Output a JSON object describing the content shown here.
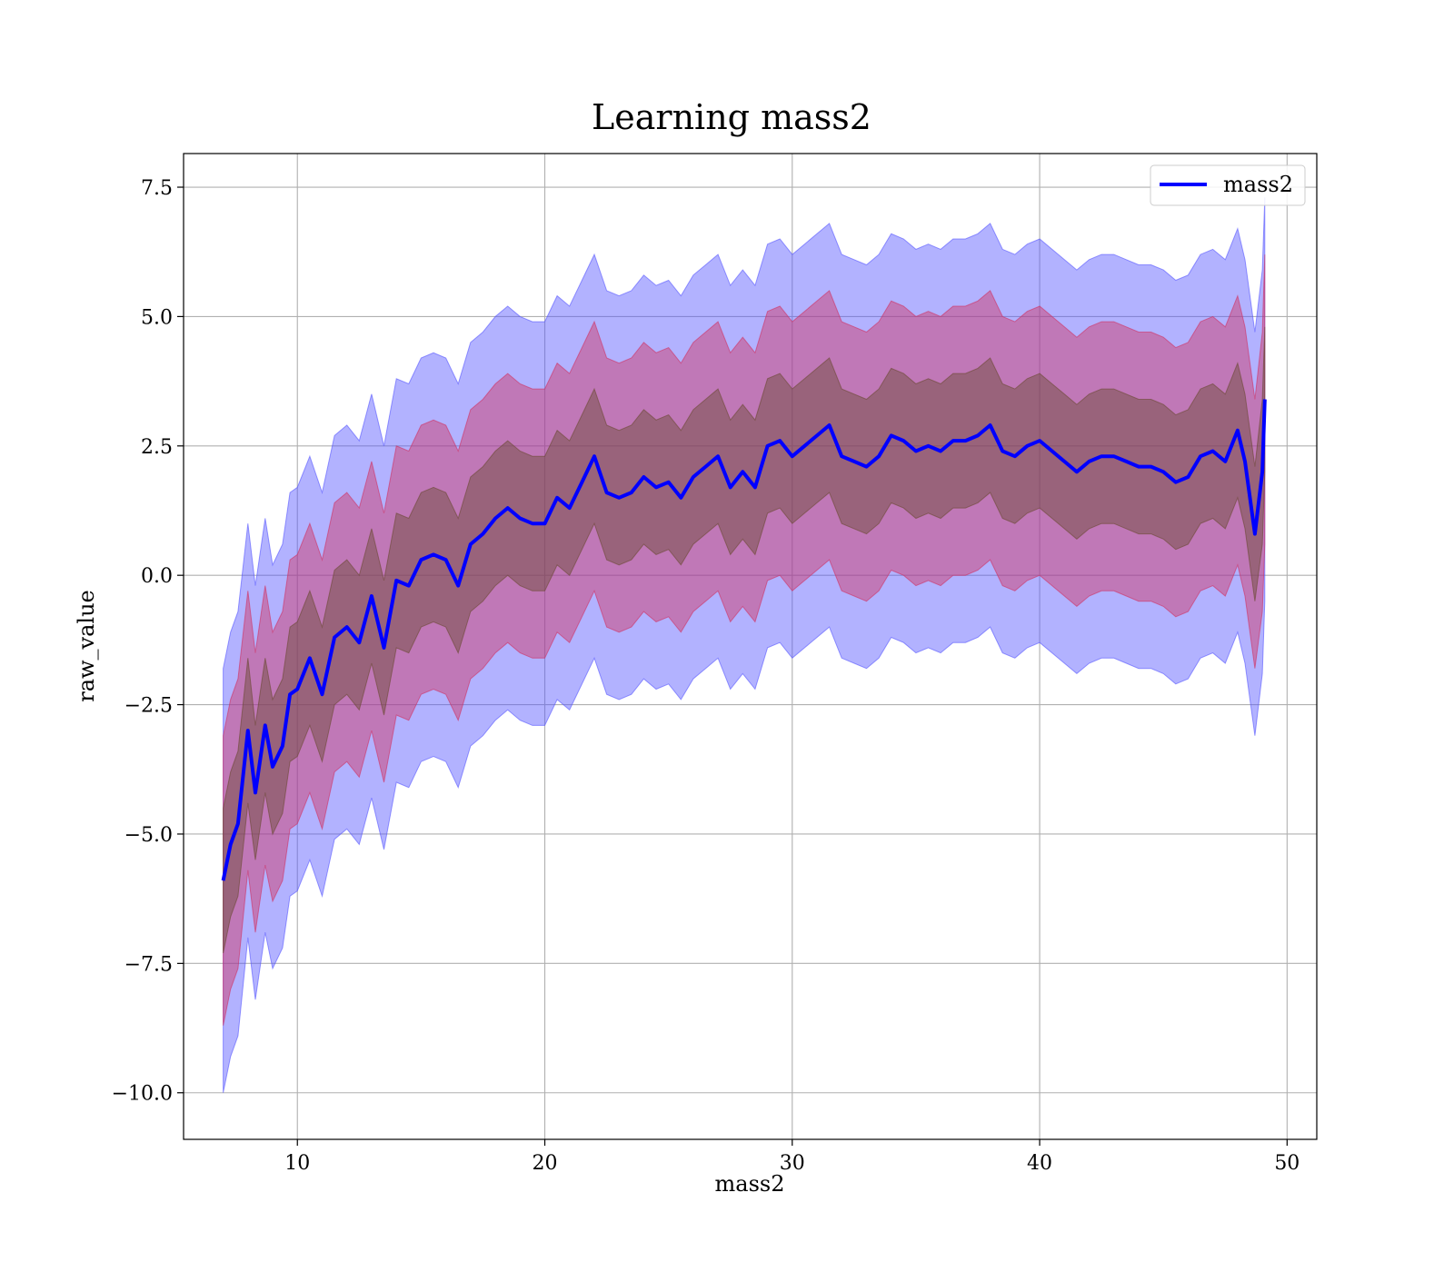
{
  "chart_data": {
    "type": "line",
    "title": "Learning mass2",
    "xlabel": "mass2",
    "ylabel": "raw_value",
    "xlim": [
      5.4,
      51.2
    ],
    "ylim": [
      -10.9,
      8.15
    ],
    "xticks": [
      10,
      20,
      30,
      40,
      50
    ],
    "yticks": [
      7.5,
      5.0,
      2.5,
      0.0,
      -2.5,
      -5.0,
      -7.5,
      -10.0
    ],
    "ytick_labels": [
      "7.5",
      "5.0",
      "2.5",
      "0.0",
      "−2.5",
      "−5.0",
      "−7.5",
      "−10.0"
    ],
    "grid": true,
    "legend": {
      "placement": "top-right",
      "entries": [
        "mass2"
      ]
    },
    "colors": {
      "line": "#0000ff",
      "band_outer": "#5555ff",
      "band_middle": "#d03060",
      "band_inner": "#6b4a33"
    },
    "band_alpha": 0.45,
    "series": [
      {
        "name": "mass2",
        "x": [
          7.0,
          7.3,
          7.6,
          8.0,
          8.3,
          8.7,
          9.0,
          9.4,
          9.7,
          10.0,
          10.5,
          11.0,
          11.5,
          12.0,
          12.5,
          13.0,
          13.5,
          14.0,
          14.5,
          15.0,
          15.5,
          16.0,
          16.5,
          17.0,
          17.5,
          18.0,
          18.5,
          19.0,
          19.5,
          20.0,
          20.5,
          21.0,
          21.5,
          22.0,
          22.5,
          23.0,
          23.5,
          24.0,
          24.5,
          25.0,
          25.5,
          26.0,
          26.5,
          27.0,
          27.5,
          28.0,
          28.5,
          29.0,
          29.5,
          30.0,
          30.5,
          31.0,
          31.5,
          32.0,
          32.5,
          33.0,
          33.5,
          34.0,
          34.5,
          35.0,
          35.5,
          36.0,
          36.5,
          37.0,
          37.5,
          38.0,
          38.5,
          39.0,
          39.5,
          40.0,
          40.5,
          41.0,
          41.5,
          42.0,
          42.5,
          43.0,
          43.5,
          44.0,
          44.5,
          45.0,
          45.5,
          46.0,
          46.5,
          47.0,
          47.5,
          48.0,
          48.3,
          48.7,
          49.0,
          49.1
        ],
        "mean": [
          -5.9,
          -5.2,
          -4.8,
          -3.0,
          -4.2,
          -2.9,
          -3.7,
          -3.3,
          -2.3,
          -2.2,
          -1.6,
          -2.3,
          -1.2,
          -1.0,
          -1.3,
          -0.4,
          -1.4,
          -0.1,
          -0.2,
          0.3,
          0.4,
          0.3,
          -0.2,
          0.6,
          0.8,
          1.1,
          1.3,
          1.1,
          1.0,
          1.0,
          1.5,
          1.3,
          1.8,
          2.3,
          1.6,
          1.5,
          1.6,
          1.9,
          1.7,
          1.8,
          1.5,
          1.9,
          2.1,
          2.3,
          1.7,
          2.0,
          1.7,
          2.5,
          2.6,
          2.3,
          2.5,
          2.7,
          2.9,
          2.3,
          2.2,
          2.1,
          2.3,
          2.7,
          2.6,
          2.4,
          2.5,
          2.4,
          2.6,
          2.6,
          2.7,
          2.9,
          2.4,
          2.3,
          2.5,
          2.6,
          2.4,
          2.2,
          2.0,
          2.2,
          2.3,
          2.3,
          2.2,
          2.1,
          2.1,
          2.0,
          1.8,
          1.9,
          2.3,
          2.4,
          2.2,
          2.8,
          2.2,
          0.8,
          2.0,
          3.4
        ],
        "band_inner": [
          1.4,
          1.4,
          1.4,
          1.4,
          1.3,
          1.3,
          1.3,
          1.3,
          1.3,
          1.3,
          1.3,
          1.3,
          1.3,
          1.3,
          1.3,
          1.3,
          1.3,
          1.3,
          1.3,
          1.3,
          1.3,
          1.3,
          1.3,
          1.3,
          1.3,
          1.3,
          1.3,
          1.3,
          1.3,
          1.3,
          1.3,
          1.3,
          1.3,
          1.3,
          1.3,
          1.3,
          1.3,
          1.3,
          1.3,
          1.3,
          1.3,
          1.3,
          1.3,
          1.3,
          1.3,
          1.3,
          1.3,
          1.3,
          1.3,
          1.3,
          1.3,
          1.3,
          1.3,
          1.3,
          1.3,
          1.3,
          1.3,
          1.3,
          1.3,
          1.3,
          1.3,
          1.3,
          1.3,
          1.3,
          1.3,
          1.3,
          1.3,
          1.3,
          1.3,
          1.3,
          1.3,
          1.3,
          1.3,
          1.3,
          1.3,
          1.3,
          1.3,
          1.3,
          1.3,
          1.3,
          1.3,
          1.3,
          1.3,
          1.3,
          1.3,
          1.3,
          1.3,
          1.3,
          1.4,
          1.4
        ],
        "band_middle": [
          2.8,
          2.8,
          2.8,
          2.7,
          2.7,
          2.7,
          2.6,
          2.6,
          2.6,
          2.6,
          2.6,
          2.6,
          2.6,
          2.6,
          2.6,
          2.6,
          2.6,
          2.6,
          2.6,
          2.6,
          2.6,
          2.6,
          2.6,
          2.6,
          2.6,
          2.6,
          2.6,
          2.6,
          2.6,
          2.6,
          2.6,
          2.6,
          2.6,
          2.6,
          2.6,
          2.6,
          2.6,
          2.6,
          2.6,
          2.6,
          2.6,
          2.6,
          2.6,
          2.6,
          2.6,
          2.6,
          2.6,
          2.6,
          2.6,
          2.6,
          2.6,
          2.6,
          2.6,
          2.6,
          2.6,
          2.6,
          2.6,
          2.6,
          2.6,
          2.6,
          2.6,
          2.6,
          2.6,
          2.6,
          2.6,
          2.6,
          2.6,
          2.6,
          2.6,
          2.6,
          2.6,
          2.6,
          2.6,
          2.6,
          2.6,
          2.6,
          2.6,
          2.6,
          2.6,
          2.6,
          2.6,
          2.6,
          2.6,
          2.6,
          2.6,
          2.6,
          2.6,
          2.6,
          2.7,
          2.8
        ],
        "band_outer": [
          4.1,
          4.1,
          4.1,
          4.0,
          4.0,
          4.0,
          3.9,
          3.9,
          3.9,
          3.9,
          3.9,
          3.9,
          3.9,
          3.9,
          3.9,
          3.9,
          3.9,
          3.9,
          3.9,
          3.9,
          3.9,
          3.9,
          3.9,
          3.9,
          3.9,
          3.9,
          3.9,
          3.9,
          3.9,
          3.9,
          3.9,
          3.9,
          3.9,
          3.9,
          3.9,
          3.9,
          3.9,
          3.9,
          3.9,
          3.9,
          3.9,
          3.9,
          3.9,
          3.9,
          3.9,
          3.9,
          3.9,
          3.9,
          3.9,
          3.9,
          3.9,
          3.9,
          3.9,
          3.9,
          3.9,
          3.9,
          3.9,
          3.9,
          3.9,
          3.9,
          3.9,
          3.9,
          3.9,
          3.9,
          3.9,
          3.9,
          3.9,
          3.9,
          3.9,
          3.9,
          3.9,
          3.9,
          3.9,
          3.9,
          3.9,
          3.9,
          3.9,
          3.9,
          3.9,
          3.9,
          3.9,
          3.9,
          3.9,
          3.9,
          3.9,
          3.9,
          3.9,
          3.9,
          3.9,
          3.9
        ]
      }
    ]
  }
}
